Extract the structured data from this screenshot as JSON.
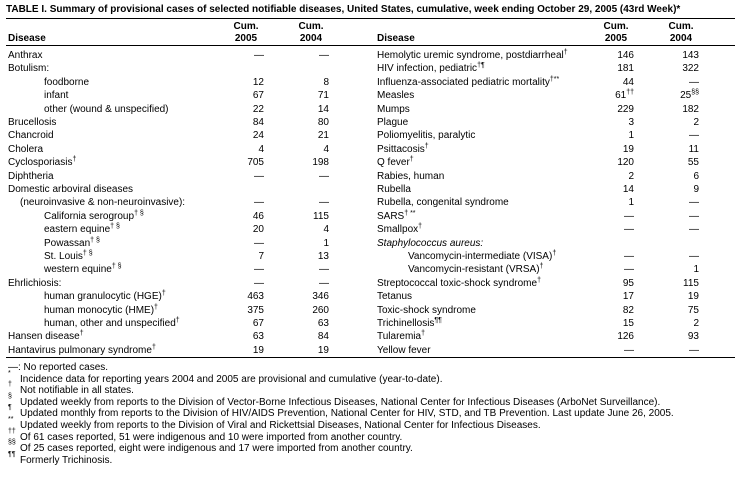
{
  "title": "TABLE I. Summary of provisional cases of selected notifiable diseases, United States, cumulative, week ending October 29, 2005 (43rd Week)*",
  "header": {
    "disease": "Disease",
    "cols": [
      [
        "Cum.",
        "2005"
      ],
      [
        "Cum.",
        "2004"
      ]
    ]
  },
  "left_rows": [
    {
      "label": {
        "text": "Anthrax"
      },
      "cells": [
        "—",
        "—"
      ]
    },
    {
      "label": {
        "text": "Botulism:"
      }
    },
    {
      "label": {
        "text": "foodborne"
      },
      "cells": [
        "12",
        "8"
      ]
    },
    {
      "label": {
        "text": "infant"
      },
      "cells": [
        "67",
        "71"
      ]
    },
    {
      "label": {
        "text": "other (wound & unspecified)"
      },
      "cells": [
        "22",
        "14"
      ]
    },
    {
      "label": {
        "text": "Brucellosis"
      },
      "cells": [
        "84",
        "80"
      ]
    },
    {
      "label": {
        "text": "Chancroid"
      },
      "cells": [
        "24",
        "21"
      ]
    },
    {
      "label": {
        "text": "Cholera"
      },
      "cells": [
        "4",
        "4"
      ]
    },
    {
      "label": {
        "text": "Cyclosporiasis",
        "sup": "†"
      },
      "cells": [
        "705",
        "198"
      ]
    },
    {
      "label": {
        "text": "Diphtheria"
      },
      "cells": [
        "—",
        "—"
      ]
    },
    {
      "label": {
        "text": "Domestic arboviral diseases"
      }
    },
    {
      "label": {
        "text": "(neuroinvasive & non-neuroinvasive):"
      },
      "cells": [
        "—",
        "—"
      ]
    },
    {
      "label": {
        "text": "California serogroup",
        "sup": "† §"
      },
      "cells": [
        "46",
        "115"
      ]
    },
    {
      "label": {
        "text": "eastern equine",
        "sup": "† §"
      },
      "cells": [
        "20",
        "4"
      ]
    },
    {
      "label": {
        "text": "Powassan",
        "sup": "† §"
      },
      "cells": [
        "—",
        "1"
      ]
    },
    {
      "label": {
        "text": "St. Louis",
        "sup": "† §"
      },
      "cells": [
        "7",
        "13"
      ]
    },
    {
      "label": {
        "text": "western equine",
        "sup": "† §"
      },
      "cells": [
        "—",
        "—"
      ]
    },
    {
      "label": {
        "text": "Ehrlichiosis:"
      },
      "cells": [
        "—",
        "—"
      ]
    },
    {
      "label": {
        "text": "human granulocytic (HGE)",
        "sup": "†"
      },
      "cells": [
        "463",
        "346"
      ]
    },
    {
      "label": {
        "text": "human monocytic (HME)",
        "sup": "†"
      },
      "cells": [
        "375",
        "260"
      ]
    },
    {
      "label": {
        "text": "human, other and unspecified",
        "sup": "†"
      },
      "cells": [
        "67",
        "63"
      ]
    },
    {
      "label": {
        "text": "Hansen disease",
        "sup": "†"
      },
      "cells": [
        "63",
        "84"
      ]
    },
    {
      "label": {
        "text": "Hantavirus pulmonary syndrome",
        "sup": "†"
      },
      "cells": [
        "19",
        "19"
      ]
    }
  ],
  "right_rows": [
    {
      "label": {
        "text": "Hemolytic uremic syndrome, postdiarrheal",
        "sup": "†"
      },
      "cells": [
        "146",
        "143"
      ]
    },
    {
      "label": {
        "text": "HIV infection, pediatric",
        "sup": "†¶"
      },
      "cells": [
        "181",
        "322"
      ]
    },
    {
      "label": {
        "text": "Influenza-associated pediatric mortality",
        "sup": "†**"
      },
      "cells": [
        "44",
        "—"
      ]
    },
    {
      "label": {
        "text": "Measles"
      },
      "cells": [
        {
          "text": "61",
          "sup": "††"
        },
        {
          "text": "25",
          "sup": "§§"
        }
      ]
    },
    {
      "label": {
        "text": "Mumps"
      },
      "cells": [
        "229",
        "182"
      ]
    },
    {
      "label": {
        "text": "Plague"
      },
      "cells": [
        "3",
        "2"
      ]
    },
    {
      "label": {
        "text": "Poliomyelitis, paralytic"
      },
      "cells": [
        "1",
        "—"
      ]
    },
    {
      "label": {
        "text": "Psittacosis",
        "sup": "†"
      },
      "cells": [
        "19",
        "11"
      ]
    },
    {
      "label": {
        "text": "Q fever",
        "sup": "†"
      },
      "cells": [
        "120",
        "55"
      ]
    },
    {
      "label": {
        "text": "Rabies, human"
      },
      "cells": [
        "2",
        "6"
      ]
    },
    {
      "label": {
        "text": "Rubella"
      },
      "cells": [
        "14",
        "9"
      ]
    },
    {
      "label": {
        "text": "Rubella, congenital syndrome"
      },
      "cells": [
        "1",
        "—"
      ]
    },
    {
      "label": {
        "text": "SARS",
        "sup": "† **"
      },
      "cells": [
        "—",
        "—"
      ]
    },
    {
      "label": {
        "text": "Smallpox",
        "sup": "†"
      },
      "cells": [
        "—",
        "—"
      ]
    },
    {
      "label": {
        "text": "Staphylococcus aureus:"
      }
    },
    {
      "label": {
        "text": "Vancomycin-intermediate (VISA)",
        "sup": "†"
      },
      "cells": [
        "—",
        "—"
      ]
    },
    {
      "label": {
        "text": "Vancomycin-resistant (VRSA)",
        "sup": "†"
      },
      "cells": [
        "—",
        "1"
      ]
    },
    {
      "label": {
        "text": "Streptococcal toxic-shock syndrome",
        "sup": "†"
      },
      "cells": [
        "95",
        "115"
      ]
    },
    {
      "label": {
        "text": "Tetanus"
      },
      "cells": [
        "17",
        "19"
      ]
    },
    {
      "label": {
        "text": "Toxic-shock syndrome"
      },
      "cells": [
        "82",
        "75"
      ]
    },
    {
      "label": {
        "text": "Trichinellosis",
        "sup": "¶¶"
      },
      "cells": [
        "15",
        "2"
      ]
    },
    {
      "label": {
        "text": "Tularemia",
        "sup": "†"
      },
      "cells": [
        "126",
        "93"
      ]
    },
    {
      "label": {
        "text": "Yellow fever"
      },
      "cells": [
        "—",
        "—"
      ]
    }
  ],
  "footnotes": [
    {
      "text": "—: No reported cases."
    },
    {
      "mark": "*",
      "text": "Incidence data for reporting years 2004 and 2005 are provisional and cumulative (year-to-date)."
    },
    {
      "mark": "†",
      "text": "Not notifiable in all states."
    },
    {
      "mark": "§",
      "text": "Updated weekly from reports to the Division of Vector-Borne Infectious Diseases, National Center for Infectious Diseases (ArboNet Surveillance)."
    },
    {
      "mark": "¶",
      "text": "Updated monthly from reports to the Division of HIV/AIDS Prevention, National Center for HIV, STD, and TB Prevention. Last update June 26, 2005."
    },
    {
      "mark": "**",
      "text": "Updated weekly from reports to the Division of Viral and Rickettsial Diseases, National Center for Infectious Diseases."
    },
    {
      "mark": "††",
      "text": "Of 61 cases reported, 51 were indigenous and 10 were imported from another country."
    },
    {
      "mark": "§§",
      "text": "Of 25 cases reported, eight were indigenous and 17 were imported from another country."
    },
    {
      "mark": "¶¶",
      "text": "Formerly Trichinosis."
    }
  ]
}
